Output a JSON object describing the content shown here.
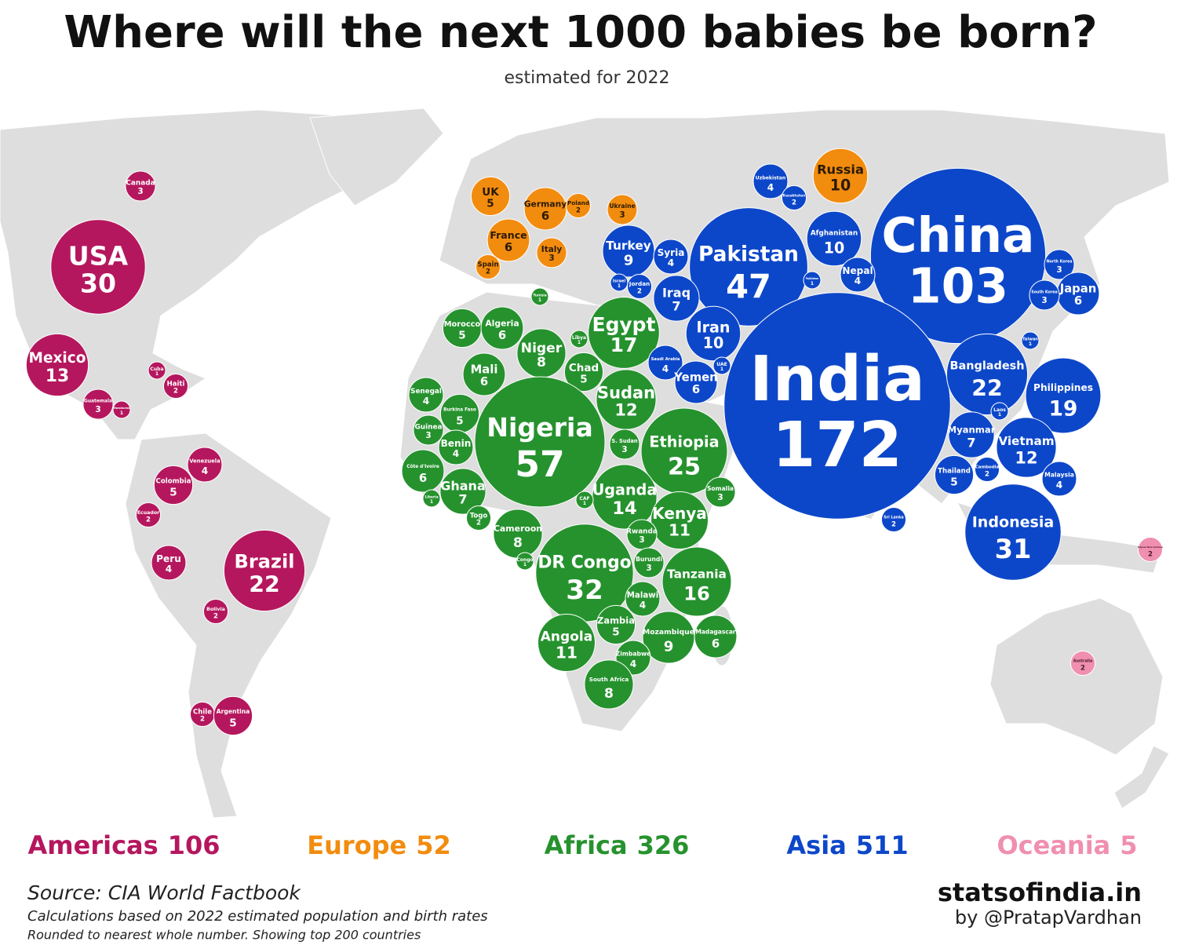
{
  "title": "Where will the next 1000 babies be born?",
  "subtitle": "estimated for 2022",
  "regions": [
    {
      "name": "Americas",
      "total": 106,
      "color": "#b5175e",
      "label_color": "#ffffff",
      "countries": [
        {
          "name": "Canada",
          "value": 3
        },
        {
          "name": "USA",
          "value": 30
        },
        {
          "name": "Mexico",
          "value": 13
        },
        {
          "name": "Cuba",
          "value": 1
        },
        {
          "name": "Haiti",
          "value": 2
        },
        {
          "name": "Guatemala",
          "value": 3
        },
        {
          "name": "Honduras",
          "value": 1
        },
        {
          "name": "Venezuela",
          "value": 4
        },
        {
          "name": "Colombia",
          "value": 5
        },
        {
          "name": "Ecuador",
          "value": 2
        },
        {
          "name": "Peru",
          "value": 4
        },
        {
          "name": "Brazil",
          "value": 22
        },
        {
          "name": "Bolivia",
          "value": 2
        },
        {
          "name": "Chile",
          "value": 2
        },
        {
          "name": "Argentina",
          "value": 5
        }
      ]
    },
    {
      "name": "Europe",
      "total": 52,
      "color": "#f28c0f",
      "label_color": "#2a1a05",
      "countries": [
        {
          "name": "UK",
          "value": 5
        },
        {
          "name": "Germany",
          "value": 6
        },
        {
          "name": "Poland",
          "value": 2
        },
        {
          "name": "Ukraine",
          "value": 3
        },
        {
          "name": "France",
          "value": 6
        },
        {
          "name": "Italy",
          "value": 3
        },
        {
          "name": "Spain",
          "value": 2
        },
        {
          "name": "Russia",
          "value": 10
        }
      ]
    },
    {
      "name": "Africa",
      "total": 326,
      "color": "#26922e",
      "label_color": "#ffffff",
      "countries": [
        {
          "name": "Tunisia",
          "value": 1
        },
        {
          "name": "Morocco",
          "value": 5
        },
        {
          "name": "Algeria",
          "value": 6
        },
        {
          "name": "Niger",
          "value": 8
        },
        {
          "name": "Libya",
          "value": 1
        },
        {
          "name": "Egypt",
          "value": 17
        },
        {
          "name": "Mali",
          "value": 6
        },
        {
          "name": "Chad",
          "value": 5
        },
        {
          "name": "Sudan",
          "value": 12
        },
        {
          "name": "Senegal",
          "value": 4
        },
        {
          "name": "Burkina Faso",
          "value": 5
        },
        {
          "name": "Guinea",
          "value": 3
        },
        {
          "name": "Benin",
          "value": 4
        },
        {
          "name": "Nigeria",
          "value": 57
        },
        {
          "name": "S. Sudan",
          "value": 3
        },
        {
          "name": "Ethiopia",
          "value": 25
        },
        {
          "name": "Côte d'Ivoire",
          "value": 6
        },
        {
          "name": "Ghana",
          "value": 7
        },
        {
          "name": "Liberia",
          "value": 1
        },
        {
          "name": "Uganda",
          "value": 14
        },
        {
          "name": "Somalia",
          "value": 3
        },
        {
          "name": "CAF",
          "value": 1
        },
        {
          "name": "Togo",
          "value": 2
        },
        {
          "name": "Kenya",
          "value": 11
        },
        {
          "name": "Cameroon",
          "value": 8
        },
        {
          "name": "Rwanda",
          "value": 3
        },
        {
          "name": "Congo",
          "value": 1
        },
        {
          "name": "DR Congo",
          "value": 32
        },
        {
          "name": "Burundi",
          "value": 3
        },
        {
          "name": "Tanzania",
          "value": 16
        },
        {
          "name": "Malawi",
          "value": 4
        },
        {
          "name": "Zambia",
          "value": 5
        },
        {
          "name": "Mozambique",
          "value": 9
        },
        {
          "name": "Madagascar",
          "value": 6
        },
        {
          "name": "Angola",
          "value": 11
        },
        {
          "name": "Zimbabwe",
          "value": 4
        },
        {
          "name": "South Africa",
          "value": 8
        }
      ]
    },
    {
      "name": "Asia",
      "total": 511,
      "color": "#0d47c9",
      "label_color": "#ffffff",
      "countries": [
        {
          "name": "Uzbekistan",
          "value": 4
        },
        {
          "name": "Kazakhstan",
          "value": 2
        },
        {
          "name": "Pakistan",
          "value": 47
        },
        {
          "name": "Afghanistan",
          "value": 10
        },
        {
          "name": "China",
          "value": 103
        },
        {
          "name": "Turkey",
          "value": 9
        },
        {
          "name": "Syria",
          "value": 4
        },
        {
          "name": "Israel",
          "value": 1
        },
        {
          "name": "Jordan",
          "value": 2
        },
        {
          "name": "Iraq",
          "value": 7
        },
        {
          "name": "Nepal",
          "value": 4
        },
        {
          "name": "Tajikistan",
          "value": 1
        },
        {
          "name": "North Korea",
          "value": 3
        },
        {
          "name": "Japan",
          "value": 6
        },
        {
          "name": "South Korea",
          "value": 3
        },
        {
          "name": "Iran",
          "value": 10
        },
        {
          "name": "India",
          "value": 172
        },
        {
          "name": "Saudi Arabia",
          "value": 4
        },
        {
          "name": "Yemen",
          "value": 6
        },
        {
          "name": "UAE",
          "value": 1
        },
        {
          "name": "Bangladesh",
          "value": 22
        },
        {
          "name": "Taiwan",
          "value": 1
        },
        {
          "name": "Philippines",
          "value": 19
        },
        {
          "name": "Laos",
          "value": 1
        },
        {
          "name": "Myanmar",
          "value": 7
        },
        {
          "name": "Vietnam",
          "value": 12
        },
        {
          "name": "Cambodia",
          "value": 2
        },
        {
          "name": "Thailand",
          "value": 5
        },
        {
          "name": "Malaysia",
          "value": 4
        },
        {
          "name": "Sri Lanka",
          "value": 2
        },
        {
          "name": "Indonesia",
          "value": 31
        }
      ]
    },
    {
      "name": "Oceania",
      "total": 5,
      "color": "#f08fb0",
      "label_color": "#4a1a2a",
      "countries": [
        {
          "name": "Papua New Guinea",
          "value": 2
        },
        {
          "name": "Australia",
          "value": 2
        }
      ]
    }
  ],
  "source": "Source: CIA World Factbook",
  "notes": [
    "Calculations based on 2022 estimated population and birth rates",
    "Rounded to nearest whole number. Showing top 200 countries"
  ],
  "brand": "statsofindia.in",
  "byline": "by @PratapVardhan"
}
